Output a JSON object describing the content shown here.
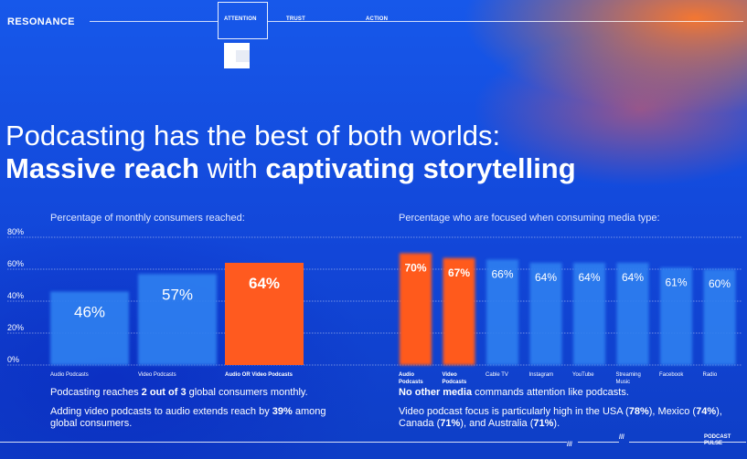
{
  "header": {
    "brand": "RESONANCE",
    "nav": [
      {
        "label": "ATTENTION",
        "active": true
      },
      {
        "label": "TRUST",
        "active": false
      },
      {
        "label": "ACTION",
        "active": false
      }
    ]
  },
  "headline": {
    "line1": "Podcasting has the best of both worlds:",
    "line2_bold1": "Massive reach",
    "line2_mid": " with ",
    "line2_bold2": "captivating storytelling"
  },
  "left_subtitle": "Percentage of monthly consumers reached:",
  "right_subtitle": "Percentage who are focused when consuming media type:",
  "colors": {
    "highlight": "#ff5a1f",
    "bar": "#2f7ff0",
    "background": "#1347d6"
  },
  "chart_data": [
    {
      "type": "bar",
      "title": "Percentage of monthly consumers reached:",
      "ylim": [
        0,
        80
      ],
      "yticks": [
        "0%",
        "20%",
        "40%",
        "60%",
        "80%"
      ],
      "categories": [
        "Audio Podcasts",
        "Video Podcasts",
        "Audio OR Video Podcasts"
      ],
      "values": [
        46,
        57,
        64
      ],
      "value_labels": [
        "46%",
        "57%",
        "64%"
      ],
      "highlight": [
        false,
        false,
        true
      ]
    },
    {
      "type": "bar",
      "title": "Percentage who are focused when consuming media type:",
      "ylim": [
        0,
        80
      ],
      "categories": [
        "Audio Podcasts",
        "Video Podcasts",
        "Cable TV",
        "Instagram",
        "YouTube",
        "Streaming Music Services",
        "Facebook",
        "Radio"
      ],
      "values": [
        70,
        67,
        66,
        64,
        64,
        64,
        61,
        60
      ],
      "value_labels": [
        "70%",
        "67%",
        "66%",
        "64%",
        "64%",
        "64%",
        "61%",
        "60%"
      ],
      "highlight": [
        true,
        true,
        false,
        false,
        false,
        false,
        false,
        false
      ]
    }
  ],
  "notes": {
    "left1_pre": "Podcasting reaches ",
    "left1_bold": "2 out of 3",
    "left1_post": " global consumers monthly.",
    "left2_pre": "Adding video podcasts to audio extends reach by ",
    "left2_bold": "39%",
    "left2_post": " among global consumers.",
    "right1_bold": "No other media",
    "right1_post": " commands attention like podcasts.",
    "right2_pre": "Video podcast focus is particularly high in the USA (",
    "right2_b1": "78%",
    "right2_m1": "), Mexico (",
    "right2_b2": "74%",
    "right2_m2": "), Canada (",
    "right2_b3": "71%",
    "right2_m3": "), and Australia (",
    "right2_b4": "71%",
    "right2_post": ")."
  },
  "footer": {
    "slash1": "///",
    "slash2": "///",
    "pulse_line1": "PODCAST",
    "pulse_line2": "PULSE"
  }
}
